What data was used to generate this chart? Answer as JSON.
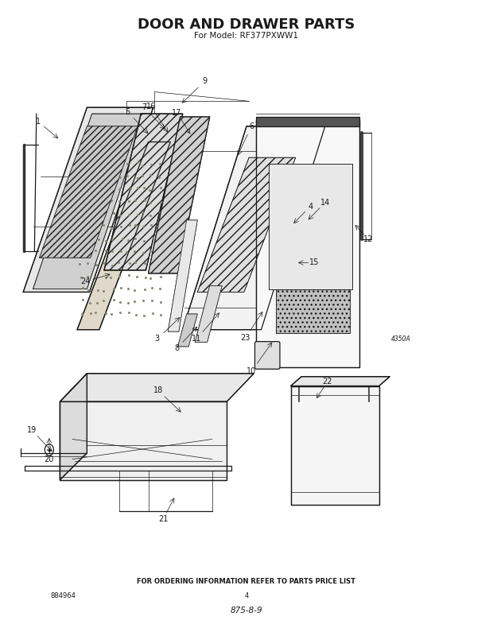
{
  "title": "DOOR AND DRAWER PARTS",
  "subtitle": "For Model: RF377PXWW1",
  "footer_text": "FOR ORDERING INFORMATION REFER TO PARTS PRICE LIST",
  "page_number": "4",
  "doc_number": "884964",
  "revision": "875-8-9",
  "diagram_code": "4350A",
  "bg_color": "#ffffff",
  "line_color": "#1a1a1a",
  "title_fontsize": 13,
  "subtitle_fontsize": 7.5,
  "footer_fontsize": 6,
  "part_label_fontsize": 7
}
